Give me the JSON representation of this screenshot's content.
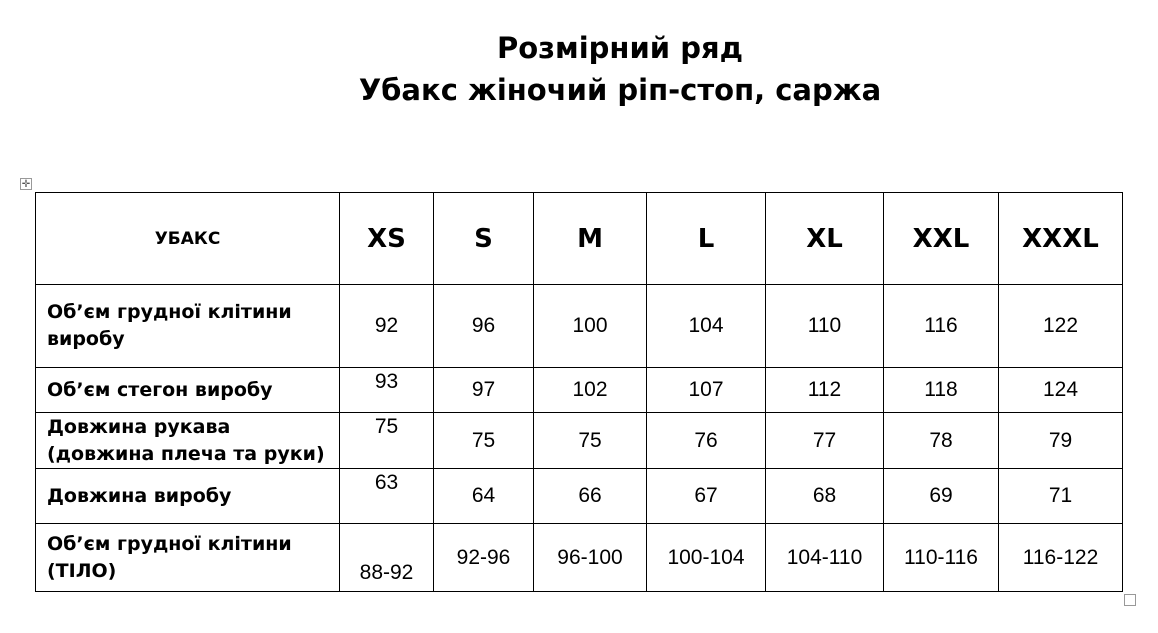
{
  "title": {
    "line1": "Розмірний ряд",
    "line2": "Убакс жіночий ріп-стоп, саржа"
  },
  "table": {
    "corner": "УБАКС",
    "sizes": [
      "XS",
      "S",
      "M",
      "L",
      "XL",
      "XXL",
      "XXXL"
    ],
    "rows": [
      {
        "label": "Об’єм грудної клітини виробу",
        "values": [
          "92",
          "96",
          "100",
          "104",
          "110",
          "116",
          "122"
        ]
      },
      {
        "label": "Об’єм стегон виробу",
        "values": [
          "93",
          "97",
          "102",
          "107",
          "112",
          "118",
          "124"
        ]
      },
      {
        "label": "Довжина рукава (довжина плеча та руки)",
        "values": [
          "75",
          "75",
          "75",
          "76",
          "77",
          "78",
          "79"
        ]
      },
      {
        "label": "Довжина виробу",
        "values": [
          "63",
          "64",
          "66",
          "67",
          "68",
          "69",
          "71"
        ]
      },
      {
        "label": "Об’єм грудної клітини (ТІЛО)",
        "values": [
          "88-92",
          "92-96",
          "96-100",
          "100-104",
          "104-110",
          "110-116",
          "116-122"
        ]
      }
    ]
  }
}
